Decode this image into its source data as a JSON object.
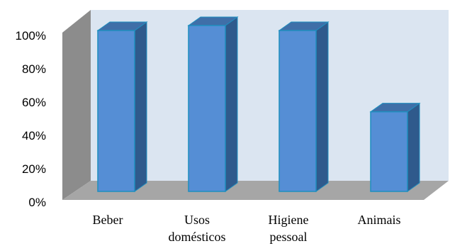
{
  "chart_data": {
    "type": "bar",
    "style": "3d-column",
    "categories": [
      [
        "Beber"
      ],
      [
        "Usos",
        "domésticos"
      ],
      [
        "Higiene",
        "pessoal"
      ],
      [
        "Animais"
      ]
    ],
    "values": [
      97,
      100,
      97,
      48
    ],
    "y_unit": "%",
    "ylim": [
      0,
      100
    ],
    "yticks": [
      "0%",
      "20%",
      "40%",
      "60%",
      "80%",
      "100%"
    ],
    "grid": false,
    "legend": "none",
    "colors": {
      "bar_front": "#558ed5",
      "bar_side": "#2f5a8c",
      "bar_top": "#3f6fa8",
      "bar_edge": "#1f8fbf",
      "back_wall": "#dbe5f1",
      "side_wall": "#8c8c8c",
      "floor": "#a6a6a6"
    }
  }
}
